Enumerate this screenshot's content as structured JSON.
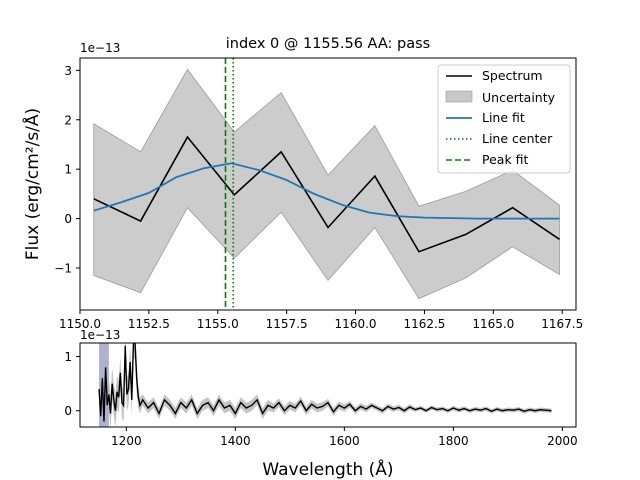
{
  "chart_data": [
    {
      "type": "line",
      "title": "index 0 @ 1155.56 AA: pass",
      "ylabel": "Flux (erg/cm²/s/Å)",
      "xlabel": "",
      "offset_text": "1e−13",
      "xlim": [
        1150.0,
        1168.0
      ],
      "ylim": [
        -1.85,
        3.25
      ],
      "xticks": [
        1150.0,
        1152.5,
        1155.0,
        1157.5,
        1160.0,
        1162.5,
        1165.0,
        1167.5
      ],
      "xtick_labels": [
        "1150.0",
        "1152.5",
        "1155.0",
        "1157.5",
        "1160.0",
        "1162.5",
        "1165.0",
        "1167.5"
      ],
      "yticks": [
        -1,
        0,
        1,
        2,
        3
      ],
      "ytick_labels": [
        "−1",
        "0",
        "1",
        "2",
        "3"
      ],
      "legend_position": "top-right",
      "x": [
        1150.5,
        1152.2,
        1153.9,
        1155.6,
        1157.3,
        1159.0,
        1160.7,
        1162.3,
        1164.0,
        1165.7,
        1167.4
      ],
      "series": [
        {
          "name": "Spectrum",
          "color": "#000000",
          "values": [
            0.4,
            -0.05,
            1.65,
            0.48,
            1.35,
            -0.18,
            0.86,
            -0.67,
            -0.32,
            0.22,
            -0.42
          ]
        },
        {
          "name": "Uncertainty",
          "color": "#b0b0b0",
          "upper": [
            1.92,
            1.35,
            3.02,
            1.75,
            2.55,
            0.88,
            1.88,
            0.25,
            0.55,
            0.98,
            0.27
          ],
          "lower": [
            -1.15,
            -1.5,
            0.22,
            -0.8,
            0.13,
            -1.25,
            -0.18,
            -1.62,
            -1.2,
            -0.57,
            -1.13
          ]
        },
        {
          "name": "Line fit",
          "color": "#1f77b4",
          "x": [
            1150.5,
            1151.5,
            1152.5,
            1153.5,
            1154.5,
            1155.5,
            1156.5,
            1157.5,
            1158.5,
            1159.5,
            1160.5,
            1161.5,
            1162.5,
            1163.5,
            1164.5,
            1165.5,
            1166.5,
            1167.4
          ],
          "values": [
            0.16,
            0.33,
            0.52,
            0.84,
            1.02,
            1.12,
            0.98,
            0.78,
            0.5,
            0.28,
            0.12,
            0.05,
            0.02,
            0.01,
            0.0,
            0.0,
            0.0,
            0.0
          ]
        },
        {
          "name": "Line center",
          "color": "#008000",
          "x_value": 1155.56
        },
        {
          "name": "Peak fit",
          "color": "#008000",
          "x_value": 1155.28
        }
      ]
    },
    {
      "type": "line",
      "xlabel": "Wavelength (Å)",
      "offset_text": "1e−13",
      "xlim": [
        1115,
        2025
      ],
      "ylim": [
        -0.3,
        1.25
      ],
      "xticks": [
        1200,
        1400,
        1600,
        1800,
        2000
      ],
      "xtick_labels": [
        "1200",
        "1400",
        "1600",
        "1800",
        "2000"
      ],
      "yticks": [
        0,
        1
      ],
      "ytick_labels": [
        "0",
        "1"
      ],
      "highlight_span": [
        1150,
        1168
      ],
      "x": [
        1150,
        1153,
        1156,
        1159,
        1162,
        1165,
        1168,
        1171,
        1174,
        1177,
        1180,
        1183,
        1186,
        1189,
        1192,
        1195,
        1198,
        1201,
        1204,
        1207,
        1210,
        1213,
        1216,
        1219,
        1222,
        1225,
        1230,
        1240,
        1250,
        1260,
        1270,
        1280,
        1290,
        1300,
        1310,
        1320,
        1330,
        1340,
        1350,
        1360,
        1370,
        1380,
        1390,
        1400,
        1410,
        1420,
        1430,
        1440,
        1450,
        1460,
        1470,
        1480,
        1490,
        1500,
        1510,
        1520,
        1530,
        1540,
        1550,
        1560,
        1570,
        1580,
        1590,
        1600,
        1610,
        1620,
        1630,
        1640,
        1650,
        1660,
        1670,
        1680,
        1690,
        1700,
        1710,
        1720,
        1730,
        1740,
        1750,
        1760,
        1770,
        1780,
        1790,
        1800,
        1810,
        1820,
        1830,
        1840,
        1850,
        1860,
        1870,
        1880,
        1890,
        1900,
        1910,
        1920,
        1930,
        1940,
        1950,
        1960,
        1970,
        1980
      ],
      "values": [
        0.4,
        -0.1,
        0.6,
        -0.2,
        0.8,
        0.1,
        0.3,
        -0.05,
        0.5,
        0.2,
        0.0,
        0.35,
        0.25,
        0.7,
        0.15,
        0.1,
        1.2,
        0.3,
        0.4,
        0.9,
        0.2,
        1.25,
        1.25,
        0.6,
        0.25,
        0.1,
        0.2,
        0.05,
        0.15,
        -0.05,
        0.2,
        0.1,
        -0.05,
        0.15,
        0.05,
        0.2,
        -0.05,
        0.1,
        0.15,
        0.0,
        0.2,
        0.05,
        0.1,
        -0.05,
        0.15,
        0.05,
        0.1,
        0.2,
        -0.05,
        0.1,
        0.05,
        0.15,
        0.0,
        0.1,
        0.05,
        0.18,
        0.0,
        0.12,
        0.05,
        0.08,
        0.15,
        -0.02,
        0.1,
        0.05,
        0.12,
        0.0,
        0.08,
        0.03,
        0.1,
        0.05,
        0.0,
        0.08,
        0.03,
        0.06,
        0.0,
        0.07,
        0.02,
        0.05,
        0.0,
        0.06,
        0.02,
        0.04,
        0.0,
        0.05,
        0.01,
        0.04,
        0.0,
        0.03,
        0.01,
        0.04,
        -0.01,
        0.03,
        0.0,
        0.02,
        0.01,
        0.03,
        -0.01,
        0.02,
        0.0,
        0.02,
        0.01,
        0.0
      ],
      "err": [
        0.3,
        0.3,
        0.3,
        0.3,
        0.3,
        0.3,
        0.3,
        0.3,
        0.3,
        0.3,
        0.3,
        0.3,
        0.3,
        0.3,
        0.3,
        0.3,
        0.3,
        0.3,
        0.3,
        0.3,
        0.3,
        0.3,
        0.3,
        0.3,
        0.2,
        0.15,
        0.1,
        0.1,
        0.1,
        0.1,
        0.1,
        0.1,
        0.1,
        0.1,
        0.1,
        0.1,
        0.1,
        0.1,
        0.1,
        0.1,
        0.1,
        0.1,
        0.1,
        0.1,
        0.1,
        0.1,
        0.1,
        0.1,
        0.1,
        0.1,
        0.08,
        0.08,
        0.08,
        0.08,
        0.08,
        0.08,
        0.08,
        0.08,
        0.08,
        0.08,
        0.07,
        0.07,
        0.07,
        0.07,
        0.06,
        0.06,
        0.06,
        0.06,
        0.05,
        0.05,
        0.05,
        0.05,
        0.05,
        0.05,
        0.05,
        0.05,
        0.04,
        0.04,
        0.04,
        0.04,
        0.04,
        0.04,
        0.04,
        0.04,
        0.04,
        0.04,
        0.04,
        0.04,
        0.04,
        0.04,
        0.04,
        0.04,
        0.04,
        0.04,
        0.04,
        0.04,
        0.04,
        0.04,
        0.04,
        0.04,
        0.04,
        0.04
      ],
      "color": "#000000",
      "band_color": "#b0b0b0"
    }
  ]
}
